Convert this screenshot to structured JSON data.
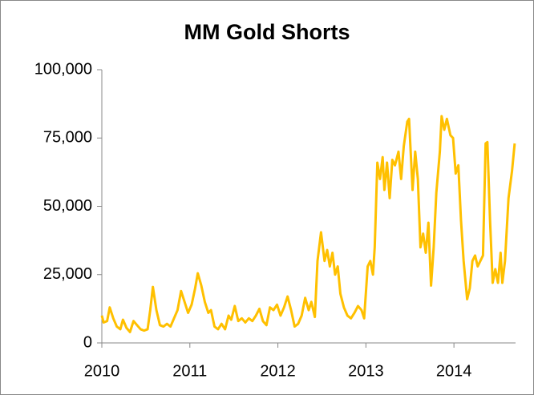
{
  "chart_data": {
    "type": "line",
    "title": "MM Gold Shorts",
    "color": "#ffc000",
    "x": [
      2010.0,
      2010.02,
      2010.06,
      2010.09,
      2010.13,
      2010.17,
      2010.21,
      2010.24,
      2010.28,
      2010.32,
      2010.36,
      2010.4,
      2010.44,
      2010.48,
      2010.52,
      2010.55,
      2010.58,
      2010.62,
      2010.66,
      2010.7,
      2010.74,
      2010.78,
      2010.82,
      2010.86,
      2010.9,
      2010.94,
      2010.98,
      2011.02,
      2011.06,
      2011.09,
      2011.13,
      2011.17,
      2011.21,
      2011.24,
      2011.28,
      2011.32,
      2011.36,
      2011.4,
      2011.44,
      2011.47,
      2011.51,
      2011.55,
      2011.59,
      2011.63,
      2011.67,
      2011.71,
      2011.75,
      2011.79,
      2011.83,
      2011.87,
      2011.91,
      2011.95,
      2011.99,
      2012.03,
      2012.07,
      2012.11,
      2012.15,
      2012.19,
      2012.23,
      2012.27,
      2012.31,
      2012.35,
      2012.38,
      2012.42,
      2012.45,
      2012.49,
      2012.53,
      2012.56,
      2012.59,
      2012.62,
      2012.65,
      2012.68,
      2012.71,
      2012.75,
      2012.79,
      2012.83,
      2012.87,
      2012.91,
      2012.95,
      2012.98,
      2013.02,
      2013.05,
      2013.08,
      2013.1,
      2013.13,
      2013.16,
      2013.19,
      2013.21,
      2013.24,
      2013.27,
      2013.3,
      2013.33,
      2013.37,
      2013.4,
      2013.43,
      2013.47,
      2013.49,
      2013.53,
      2013.56,
      2013.59,
      2013.62,
      2013.65,
      2013.68,
      2013.71,
      2013.74,
      2013.77,
      2013.8,
      2013.84,
      2013.86,
      2013.89,
      2013.92,
      2013.96,
      2013.99,
      2014.02,
      2014.05,
      2014.08,
      2014.11,
      2014.15,
      2014.18,
      2014.21,
      2014.24,
      2014.27,
      2014.3,
      2014.33,
      2014.36,
      2014.38,
      2014.41,
      2014.44,
      2014.47,
      2014.5,
      2014.53,
      2014.55,
      2014.58,
      2014.62,
      2014.66,
      2014.69
    ],
    "values": [
      10000,
      7500,
      8000,
      13000,
      9000,
      6000,
      5000,
      8500,
      5500,
      4000,
      8000,
      6500,
      5000,
      4500,
      5000,
      12000,
      20500,
      12000,
      6500,
      6000,
      7000,
      6000,
      9000,
      12000,
      19000,
      15000,
      11000,
      14000,
      20000,
      25500,
      21000,
      15000,
      11000,
      12000,
      6000,
      5000,
      7000,
      5000,
      10000,
      8500,
      13500,
      8000,
      9000,
      7500,
      9000,
      8000,
      10000,
      12500,
      8000,
      6500,
      13000,
      12000,
      14000,
      10000,
      13000,
      17000,
      12000,
      6000,
      7000,
      10000,
      16500,
      12000,
      15000,
      9500,
      30000,
      40500,
      30000,
      34000,
      28000,
      33000,
      25000,
      28000,
      18000,
      13000,
      10000,
      9000,
      11000,
      13500,
      12000,
      9000,
      28000,
      30000,
      25000,
      35000,
      66000,
      60000,
      68000,
      56000,
      66000,
      53000,
      67000,
      65000,
      70000,
      60000,
      72000,
      81000,
      82000,
      56000,
      70000,
      60000,
      35000,
      40000,
      33000,
      44000,
      21000,
      35000,
      55000,
      70000,
      83000,
      78000,
      82000,
      76000,
      75000,
      62000,
      65000,
      45000,
      30000,
      16000,
      20000,
      30000,
      32000,
      28000,
      30000,
      32000,
      73000,
      73500,
      45000,
      22000,
      27000,
      22000,
      33000,
      22000,
      30000,
      53000,
      63000,
      73000
    ],
    "xlim": [
      2010,
      2014.7
    ],
    "xticks": [
      2010,
      2011,
      2012,
      2013,
      2014
    ],
    "ylim": [
      0,
      100000
    ],
    "yticks": [
      0,
      {
        "value": 25000,
        "label": "25,000"
      },
      {
        "value": 50000,
        "label": "50,000"
      },
      {
        "value": 75000,
        "label": "75,000"
      },
      {
        "value": 100000,
        "label": "100,000"
      }
    ]
  }
}
